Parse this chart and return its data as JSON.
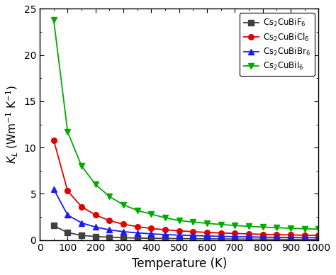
{
  "title": "",
  "xlabel": "Temperature (K)",
  "ylabel": "$K_L$ (Wm$^{-1}$ K$^{-1}$)",
  "xlim": [
    0,
    1000
  ],
  "ylim": [
    0,
    25
  ],
  "xticks": [
    0,
    100,
    200,
    300,
    400,
    500,
    600,
    700,
    800,
    900,
    1000
  ],
  "yticks": [
    0,
    5,
    10,
    15,
    20,
    25
  ],
  "temperature": [
    50,
    100,
    150,
    200,
    250,
    300,
    350,
    400,
    450,
    500,
    550,
    600,
    650,
    700,
    750,
    800,
    850,
    900,
    950,
    1000
  ],
  "F": [
    1.55,
    0.8,
    0.5,
    0.38,
    0.3,
    0.25,
    0.21,
    0.19,
    0.17,
    0.16,
    0.14,
    0.13,
    0.12,
    0.11,
    0.1,
    0.09,
    0.08,
    0.07,
    0.06,
    0.05
  ],
  "Cl": [
    10.8,
    5.3,
    3.6,
    2.7,
    2.1,
    1.7,
    1.45,
    1.25,
    1.1,
    1.0,
    0.9,
    0.82,
    0.76,
    0.71,
    0.66,
    0.62,
    0.58,
    0.55,
    0.52,
    0.5
  ],
  "Br": [
    5.5,
    2.7,
    1.85,
    1.4,
    1.1,
    0.9,
    0.77,
    0.67,
    0.59,
    0.53,
    0.48,
    0.43,
    0.4,
    0.37,
    0.34,
    0.31,
    0.29,
    0.27,
    0.25,
    0.24
  ],
  "I": [
    23.8,
    11.7,
    8.0,
    6.0,
    4.7,
    3.8,
    3.2,
    2.8,
    2.4,
    2.1,
    1.95,
    1.8,
    1.68,
    1.57,
    1.48,
    1.4,
    1.33,
    1.27,
    1.22,
    1.18
  ],
  "color_F": "#404040",
  "color_Cl": "#e00000",
  "color_Br": "#1a1aff",
  "color_I": "#00aa00",
  "label_F": "Cs$_2$CuBiF$_6$",
  "label_Cl": "Cs$_2$CuBiCl$_6$",
  "label_Br": "Cs$_2$CuBiBr$_6$",
  "label_I": "Cs$_2$CuBiI$_6$",
  "marker_F": "s",
  "marker_Cl": "o",
  "marker_Br": "^",
  "marker_I": "v",
  "linewidth": 1.3,
  "markersize": 5.5,
  "figsize": [
    4.74,
    3.88
  ],
  "dpi": 100
}
